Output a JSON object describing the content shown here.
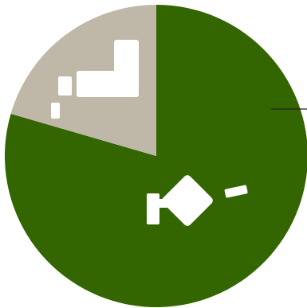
{
  "chart_data": {
    "type": "pie",
    "title": "",
    "start_angle_deg": 0,
    "direction": "clockwise",
    "slices": [
      {
        "value": 79.5,
        "color": "#336600"
      },
      {
        "value": 20.5,
        "color": "#bfb8a8"
      }
    ],
    "legend": "none",
    "leader_line_color": "#222222",
    "glyph_color": "#ffffff"
  }
}
